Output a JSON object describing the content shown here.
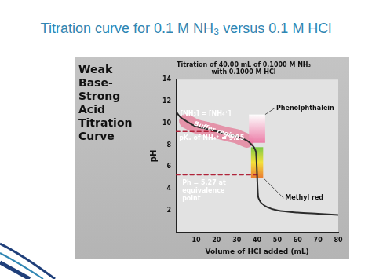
{
  "slide_title": "Titration curve for 0.1 M NH₃ versus 0.1 M HCl",
  "chart_data": {
    "type": "line",
    "heading": "Weak Base-Strong Acid Titration Curve",
    "title": [
      "Titration of 40.00 mL of 0.1000 M NH₃",
      "with 0.1000 M HCl"
    ],
    "x_label": "Volume of HCl added (mL)",
    "y_label": "pH",
    "x": [
      0,
      2,
      5,
      10,
      15,
      20,
      25,
      30,
      35,
      38,
      39,
      39.5,
      40,
      40.5,
      41,
      42,
      45,
      50,
      60,
      70,
      80
    ],
    "values": [
      11.1,
      10.6,
      10.2,
      9.7,
      9.5,
      9.25,
      9.0,
      8.8,
      8.4,
      7.9,
      7.6,
      7.3,
      5.27,
      3.3,
      3.0,
      2.7,
      2.3,
      2.0,
      1.8,
      1.7,
      1.6
    ],
    "color": "#2b2b2b",
    "xlim": [
      0,
      80
    ],
    "xticks": [
      10,
      20,
      30,
      40,
      50,
      60,
      70,
      80
    ],
    "ylim": [
      0,
      14
    ],
    "yticks": [
      2,
      4,
      6,
      8,
      10,
      12,
      14
    ],
    "grid": false,
    "annotations": {
      "half_equivalence": {
        "x": 20,
        "y": 9.25,
        "label": "[NH₃] = [NH₄⁺]",
        "ph_label": "pKₐ of NH₄⁺ = 9.25"
      },
      "equivalence": {
        "x": 40,
        "y": 5.27,
        "label": "Ph = 5.27 at equivalence point"
      },
      "buffer_region": {
        "label": "Buffer region",
        "x_range": [
          5,
          35
        ]
      },
      "indicators": [
        {
          "name": "Phenolphthalein",
          "ph_range": [
            8.2,
            10.8
          ],
          "x_range": [
            36,
            44
          ]
        },
        {
          "name": "Methyl red",
          "ph_range": [
            5.0,
            7.8
          ],
          "x_range": [
            37,
            43
          ]
        }
      ]
    }
  }
}
